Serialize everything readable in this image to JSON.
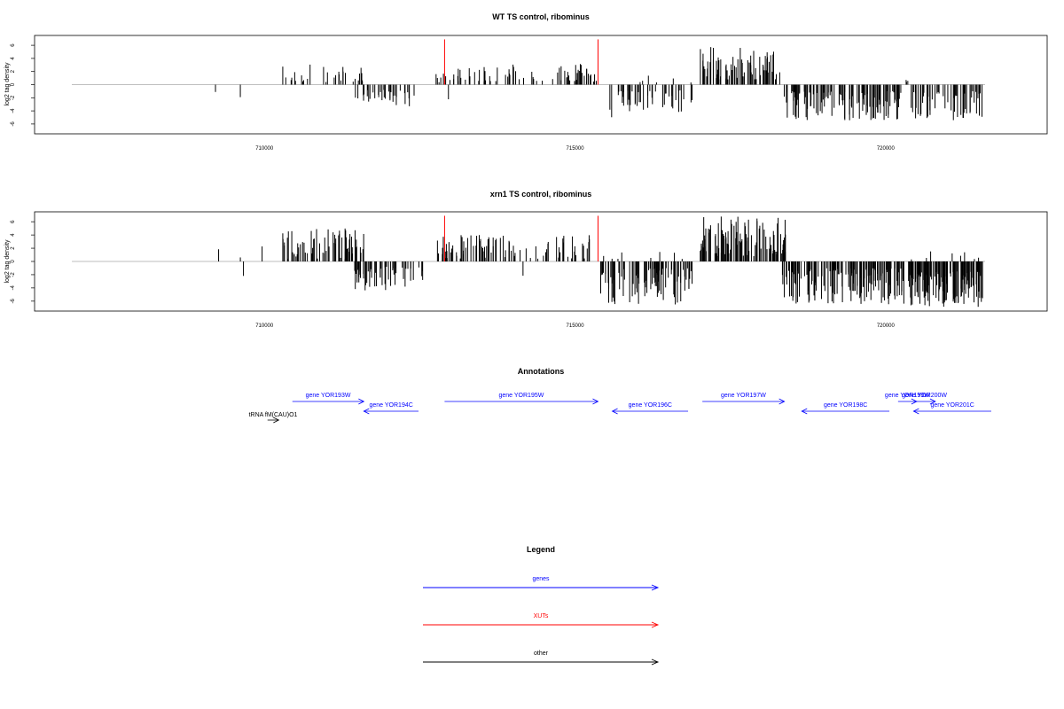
{
  "panels": [
    {
      "id": "wt",
      "title": "WT TS control, ribominus",
      "ylabel": "log2 tag density",
      "y_ticks": [
        -6,
        -4,
        -2,
        0,
        2,
        4,
        6
      ],
      "y_tick_labels": [
        "-6",
        "-4",
        "-2",
        "0",
        "2",
        "4",
        "6"
      ],
      "x_ticks": [
        710000,
        715000,
        720000
      ],
      "x_tick_labels": [
        "710000",
        "715000",
        "720000"
      ]
    },
    {
      "id": "xrn1",
      "title": "xrn1 TS control, ribominus",
      "ylabel": "log2 tag density",
      "y_ticks": [
        -6,
        -4,
        -2,
        0,
        2,
        4,
        6
      ],
      "y_tick_labels": [
        "-6",
        "-4",
        "-2",
        "0",
        "2",
        "4",
        "6"
      ],
      "x_ticks": [
        710000,
        715000,
        720000
      ],
      "x_tick_labels": [
        "710000",
        "715000",
        "720000"
      ]
    }
  ],
  "annotations": {
    "title": "Annotations",
    "items": [
      {
        "label": "gene YOR193W",
        "start": 710450,
        "end": 711600,
        "strand": "+",
        "row": 0,
        "type": "gene"
      },
      {
        "label": "gene YOR194C",
        "start": 711600,
        "end": 712480,
        "strand": "-",
        "row": 1,
        "type": "gene"
      },
      {
        "label": "gene YOR195W",
        "start": 712900,
        "end": 715370,
        "strand": "+",
        "row": 0,
        "type": "gene"
      },
      {
        "label": "gene YOR196C",
        "start": 715600,
        "end": 716820,
        "strand": "-",
        "row": 1,
        "type": "gene"
      },
      {
        "label": "gene YOR197W",
        "start": 717050,
        "end": 718370,
        "strand": "+",
        "row": 0,
        "type": "gene"
      },
      {
        "label": "gene YOR198C",
        "start": 718650,
        "end": 720060,
        "strand": "-",
        "row": 1,
        "type": "gene"
      },
      {
        "label": "gene YOR199W",
        "start": 720200,
        "end": 720500,
        "strand": "+",
        "row": 0,
        "type": "gene"
      },
      {
        "label": "gene YOR200W",
        "start": 720450,
        "end": 720800,
        "strand": "+",
        "row": 0,
        "type": "gene"
      },
      {
        "label": "gene YOR201C",
        "start": 720450,
        "end": 721700,
        "strand": "-",
        "row": 1,
        "type": "gene"
      },
      {
        "label": "tRNA fM(CAU)O1",
        "start": 710050,
        "end": 710230,
        "strand": "+",
        "row": 2,
        "type": "other"
      }
    ]
  },
  "legend": {
    "title": "Legend",
    "entries": [
      {
        "label": "genes",
        "color": "#0000ff"
      },
      {
        "label": "XUTs",
        "color": "#ff0000"
      },
      {
        "label": "other",
        "color": "#000000"
      }
    ]
  },
  "colors": {
    "gene": "#0000ff",
    "xut": "#ff0000",
    "other": "#000000",
    "bar": "#000000",
    "baseline": "#bebebe"
  },
  "chart_data": [
    {
      "type": "bar",
      "title": "WT TS control, ribominus",
      "ylabel": "log2 tag density",
      "xlim": [
        706300,
        722600
      ],
      "ylim": [
        -7.5,
        7.5
      ],
      "baseline_range": [
        706900,
        721600
      ],
      "xut_markers": [
        712900,
        715370
      ],
      "segments": [
        {
          "start": 709200,
          "end": 709250,
          "strand": "-",
          "min": 0.8,
          "max": 2.5,
          "density": 1,
          "seed": 11
        },
        {
          "start": 709600,
          "end": 709650,
          "strand": "-",
          "min": 1.5,
          "max": 3.0,
          "density": 1,
          "seed": 12
        },
        {
          "start": 710280,
          "end": 711600,
          "strand": "+",
          "min": 0.4,
          "max": 3.2,
          "density": 30,
          "seed": 13
        },
        {
          "start": 711450,
          "end": 712480,
          "strand": "-",
          "min": 0.8,
          "max": 3.8,
          "density": 35,
          "seed": 14
        },
        {
          "start": 712750,
          "end": 715370,
          "strand": "+",
          "min": 0.3,
          "max": 3.2,
          "density": 75,
          "seed": 15
        },
        {
          "start": 712950,
          "end": 713000,
          "strand": "-",
          "min": 1.5,
          "max": 2.6,
          "density": 1,
          "seed": 16
        },
        {
          "start": 715550,
          "end": 716900,
          "strand": "-",
          "min": 0.8,
          "max": 5.0,
          "density": 45,
          "seed": 17
        },
        {
          "start": 715950,
          "end": 716900,
          "strand": "+",
          "min": 0.3,
          "max": 1.5,
          "density": 6,
          "seed": 18
        },
        {
          "start": 717000,
          "end": 718300,
          "strand": "+",
          "min": 0.8,
          "max": 5.8,
          "density": 75,
          "seed": 19
        },
        {
          "start": 718300,
          "end": 720250,
          "strand": "-",
          "min": 1.0,
          "max": 5.5,
          "density": 120,
          "seed": 20
        },
        {
          "start": 720300,
          "end": 720450,
          "strand": "+",
          "min": 0.3,
          "max": 1.5,
          "density": 3,
          "seed": 21
        },
        {
          "start": 720400,
          "end": 721560,
          "strand": "-",
          "min": 1.0,
          "max": 5.5,
          "density": 55,
          "seed": 22
        }
      ]
    },
    {
      "type": "bar",
      "title": "xrn1 TS control, ribominus",
      "ylabel": "log2 tag density",
      "xlim": [
        706300,
        722600
      ],
      "ylim": [
        -7.5,
        7.5
      ],
      "baseline_range": [
        706900,
        721600
      ],
      "xut_markers": [
        712900,
        715370
      ],
      "segments": [
        {
          "start": 709250,
          "end": 709300,
          "strand": "+",
          "min": 1.8,
          "max": 2.7,
          "density": 1,
          "seed": 31
        },
        {
          "start": 709600,
          "end": 709650,
          "strand": "+",
          "min": 0.5,
          "max": 1.5,
          "density": 1,
          "seed": 32
        },
        {
          "start": 709650,
          "end": 709700,
          "strand": "-",
          "min": 2.0,
          "max": 3.0,
          "density": 1,
          "seed": 33
        },
        {
          "start": 709950,
          "end": 710000,
          "strand": "+",
          "min": 2.0,
          "max": 3.0,
          "density": 1,
          "seed": 34
        },
        {
          "start": 710200,
          "end": 711600,
          "strand": "+",
          "min": 0.4,
          "max": 5.2,
          "density": 70,
          "seed": 35
        },
        {
          "start": 711450,
          "end": 712550,
          "strand": "-",
          "min": 0.8,
          "max": 4.5,
          "density": 55,
          "seed": 36
        },
        {
          "start": 712750,
          "end": 715370,
          "strand": "+",
          "min": 0.4,
          "max": 4.0,
          "density": 90,
          "seed": 37
        },
        {
          "start": 714150,
          "end": 714200,
          "strand": "-",
          "min": 1.5,
          "max": 2.5,
          "density": 1,
          "seed": 38
        },
        {
          "start": 715400,
          "end": 716900,
          "strand": "-",
          "min": 1.0,
          "max": 6.5,
          "density": 90,
          "seed": 39
        },
        {
          "start": 715400,
          "end": 716800,
          "strand": "+",
          "min": 0.3,
          "max": 1.5,
          "density": 8,
          "seed": 40
        },
        {
          "start": 717000,
          "end": 718400,
          "strand": "+",
          "min": 0.8,
          "max": 6.8,
          "density": 110,
          "seed": 41
        },
        {
          "start": 718300,
          "end": 720300,
          "strand": "-",
          "min": 1.0,
          "max": 6.5,
          "density": 150,
          "seed": 42
        },
        {
          "start": 720350,
          "end": 721560,
          "strand": "-",
          "min": 1.5,
          "max": 7.0,
          "density": 130,
          "seed": 43
        },
        {
          "start": 720350,
          "end": 721560,
          "strand": "+",
          "min": 0.3,
          "max": 1.6,
          "density": 8,
          "seed": 44
        }
      ]
    }
  ]
}
